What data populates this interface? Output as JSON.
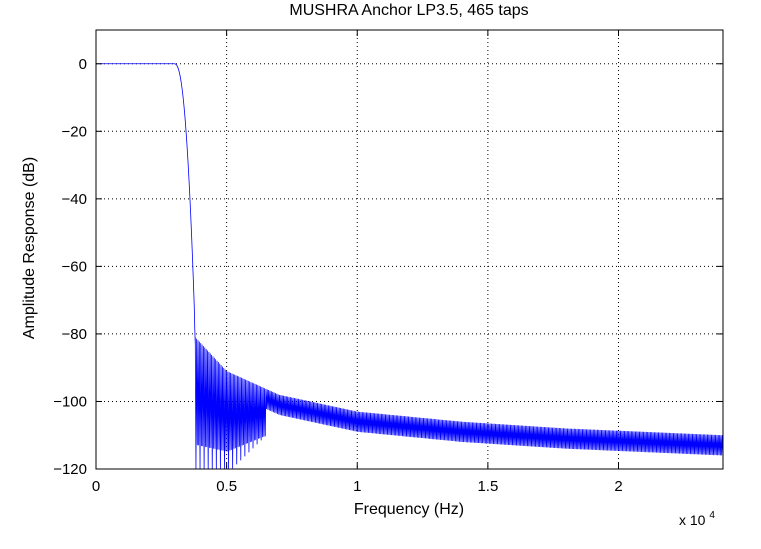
{
  "chart_data": {
    "type": "line",
    "title": "MUSHRA Anchor LP3.5, 465 taps",
    "xlabel": "Frequency (Hz)",
    "ylabel": "Amplitude Response (dB)",
    "x_multiplier": {
      "base": "x 10",
      "exponent": "4"
    },
    "xlim": [
      0,
      24000
    ],
    "ylim": [
      -120,
      10
    ],
    "x_ticks": [
      0,
      5000,
      10000,
      15000,
      20000
    ],
    "x_tick_labels": [
      "0",
      "0.5",
      "1",
      "1.5",
      "2"
    ],
    "y_ticks": [
      0,
      -20,
      -40,
      -60,
      -80,
      -100,
      -120
    ],
    "y_tick_labels": [
      "0",
      "−20",
      "−40",
      "−60",
      "−80",
      "−100",
      "−120"
    ],
    "grid": true,
    "grid_style": "dotted",
    "line_color": "#0000ff",
    "series": [
      {
        "description_points": {
          "passband_edge_hz": 3400,
          "stopband_start_hz": 3800,
          "stopband_peak_db_at_start": -81,
          "stopband_peak_db": [
            [
              3800,
              -81
            ],
            [
              5000,
              -91
            ],
            [
              7000,
              -98
            ],
            [
              10000,
              -103
            ],
            [
              14000,
              -106
            ],
            [
              18000,
              -108
            ],
            [
              24000,
              -110
            ]
          ],
          "ripple_depth_db": 6,
          "ripple_period_hz": 52
        }
      }
    ]
  }
}
